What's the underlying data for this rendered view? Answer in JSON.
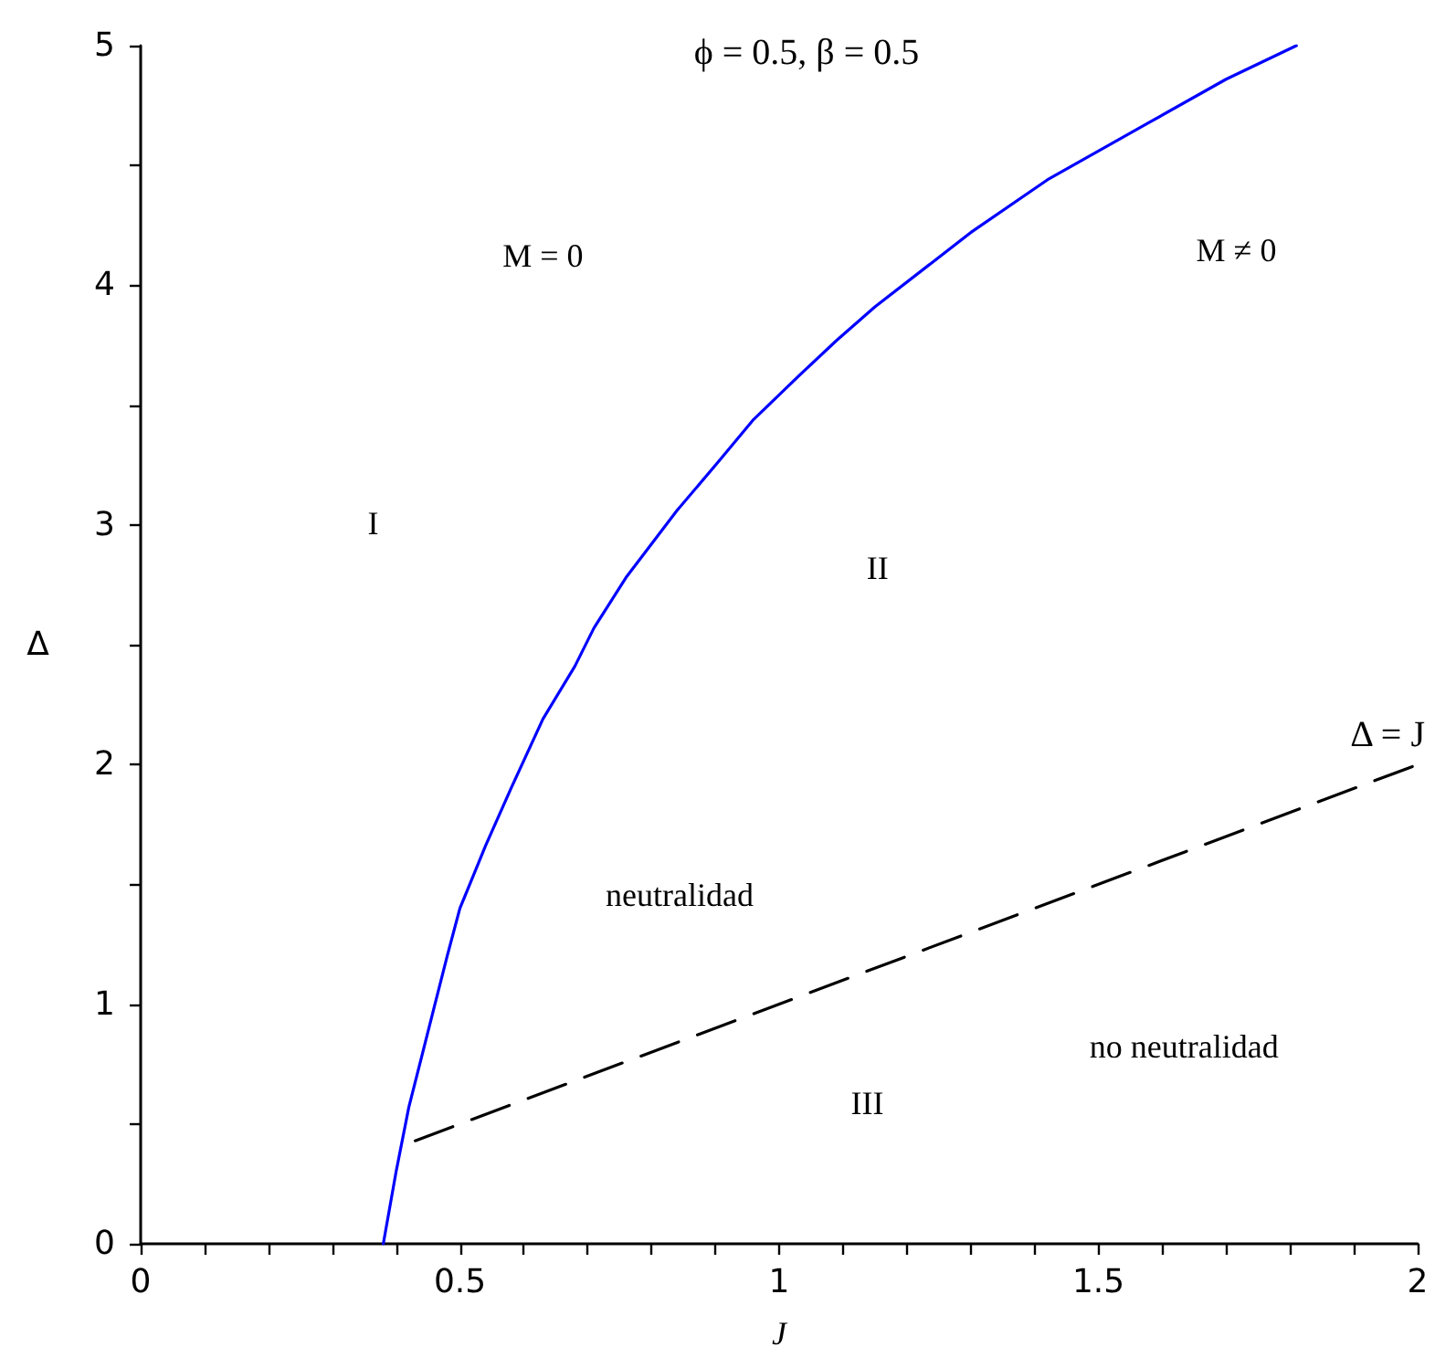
{
  "chart_data": {
    "type": "line",
    "title": "ϕ = 0.5, β = 0.5",
    "xlabel": "J",
    "ylabel": "Δ",
    "xlim": [
      0,
      2
    ],
    "ylim": [
      0,
      5
    ],
    "xticks": [
      0,
      {
        "value": 0.1,
        "label": null
      },
      {
        "value": 0.2,
        "label": null
      },
      {
        "value": 0.3,
        "label": null
      },
      {
        "value": 0.4,
        "label": null
      },
      0.5,
      {
        "value": 0.6,
        "label": null
      },
      {
        "value": 0.7,
        "label": null
      },
      {
        "value": 0.8,
        "label": null
      },
      {
        "value": 0.9,
        "label": null
      },
      1,
      {
        "value": 1.1,
        "label": null
      },
      {
        "value": 1.2,
        "label": null
      },
      {
        "value": 1.3,
        "label": null
      },
      {
        "value": 1.4,
        "label": null
      },
      1.5,
      {
        "value": 1.6,
        "label": null
      },
      {
        "value": 1.7,
        "label": null
      },
      {
        "value": 1.8,
        "label": null
      },
      {
        "value": 1.9,
        "label": null
      },
      2
    ],
    "yticks": [
      0,
      {
        "value": 0.5,
        "label": null
      },
      1,
      {
        "value": 1.5,
        "label": null
      },
      2,
      {
        "value": 2.5,
        "label": null
      },
      3,
      {
        "value": 3.5,
        "label": null
      },
      4,
      {
        "value": 4.5,
        "label": null
      },
      5
    ],
    "series": [
      {
        "color": "#0000ff",
        "line_style": "solid",
        "x": [
          0.38,
          0.4,
          0.42,
          0.44,
          0.46,
          0.48,
          0.5,
          0.54,
          0.58,
          0.63,
          0.68,
          0.71,
          0.76,
          0.8,
          0.84,
          0.91,
          0.96,
          1.03,
          1.09,
          1.15,
          1.3,
          1.42,
          1.58,
          1.7,
          1.81
        ],
        "values": [
          0,
          0.3,
          0.57,
          0.78,
          0.99,
          1.2,
          1.4,
          1.66,
          1.9,
          2.19,
          2.41,
          2.57,
          2.78,
          2.92,
          3.06,
          3.28,
          3.44,
          3.62,
          3.77,
          3.91,
          4.22,
          4.44,
          4.68,
          4.86,
          5.0
        ]
      },
      {
        "name": "Δ = J",
        "color": "#000000",
        "line_style": "dashed",
        "x": [
          0.43,
          2
        ],
        "values": [
          0.43,
          2
        ]
      }
    ],
    "annotations": [
      "M = 0",
      "M ≠ 0",
      "I",
      "II",
      "neutralidad",
      "III",
      "no neutralidad"
    ]
  }
}
